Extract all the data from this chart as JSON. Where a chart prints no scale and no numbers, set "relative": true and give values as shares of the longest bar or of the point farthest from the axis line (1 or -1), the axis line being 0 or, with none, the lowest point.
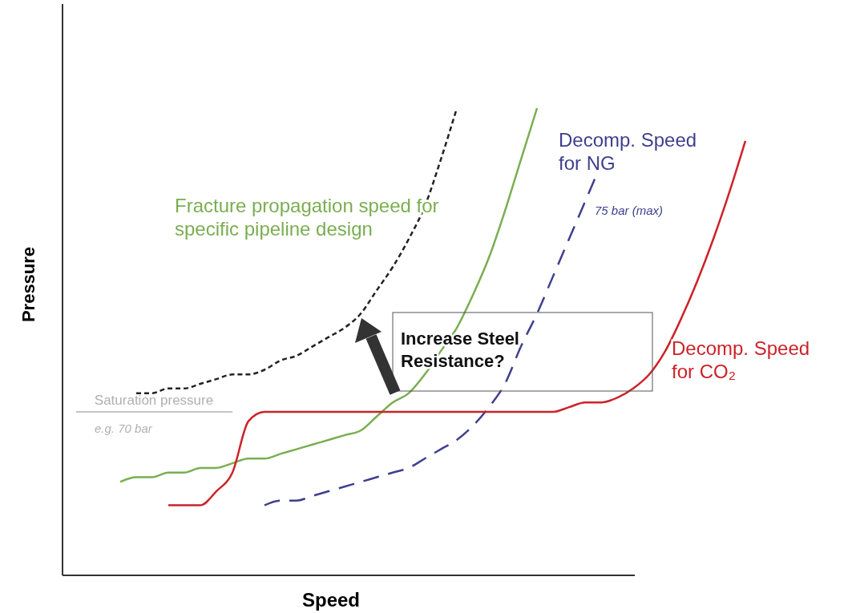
{
  "chart_data": {
    "type": "line",
    "relative": true,
    "xlabel": "Speed",
    "ylabel": "Pressure",
    "categories": [
      null,
      null,
      null,
      null,
      null,
      null,
      null,
      null,
      null,
      null,
      null,
      null,
      null,
      null,
      null,
      null,
      null,
      null,
      null,
      null,
      null,
      null,
      null,
      null,
      null,
      null,
      null,
      null,
      null,
      null,
      null,
      null,
      null,
      null,
      null,
      null,
      null,
      null,
      null,
      null
    ],
    "series": [
      {
        "name": "Fracture propagation speed for specific pipeline design",
        "color": "#7aae52",
        "line_style": "solid",
        "values": [
          0.2,
          0.21,
          0.21,
          0.22,
          0.22,
          0.23,
          0.23,
          0.24,
          0.25,
          0.25,
          0.26,
          0.27,
          0.28,
          0.29,
          0.3,
          0.31,
          0.34,
          0.37,
          0.39,
          0.43,
          0.48,
          0.53,
          0.6,
          0.68,
          0.78,
          0.89,
          1.0,
          null,
          null,
          null,
          null,
          null,
          null,
          null,
          null,
          null,
          null,
          null,
          null,
          null
        ]
      },
      {
        "color": "#222222",
        "line_style": "dashed",
        "values": [
          null,
          0.39,
          0.39,
          0.4,
          0.4,
          0.41,
          0.42,
          0.43,
          0.43,
          0.44,
          0.46,
          0.47,
          0.49,
          0.51,
          0.53,
          0.56,
          0.61,
          0.66,
          0.72,
          0.79,
          0.89,
          1.0,
          null,
          null,
          null,
          null,
          null,
          null,
          null,
          null,
          null,
          null,
          null,
          null,
          null,
          null,
          null,
          null,
          null,
          null
        ]
      },
      {
        "name": "Decomp. Speed for NG",
        "color": "#3f3f8f",
        "line_style": "dashed",
        "values": [
          null,
          null,
          null,
          null,
          null,
          null,
          null,
          null,
          null,
          0.15,
          0.16,
          0.16,
          0.17,
          0.18,
          0.19,
          0.2,
          0.21,
          0.22,
          0.23,
          0.25,
          0.27,
          0.29,
          0.32,
          0.36,
          0.41,
          0.49,
          0.56,
          0.64,
          0.72,
          0.8,
          0.88,
          null,
          null,
          null,
          null,
          null,
          null,
          null,
          null,
          null
        ]
      },
      {
        "name": "Decomp. Speed for CO₂",
        "color": "#cc2229",
        "line_style": "solid",
        "values": [
          null,
          null,
          null,
          0.15,
          0.15,
          0.15,
          0.18,
          0.22,
          0.33,
          0.35,
          0.35,
          0.35,
          0.35,
          0.35,
          0.35,
          0.35,
          0.35,
          0.35,
          0.35,
          0.35,
          0.35,
          0.35,
          0.35,
          0.35,
          0.35,
          0.35,
          0.35,
          0.35,
          0.36,
          0.37,
          0.37,
          0.38,
          0.4,
          0.43,
          0.48,
          0.55,
          0.63,
          0.72,
          0.82,
          0.93
        ]
      }
    ],
    "ref_lines": [
      {
        "axis": "y",
        "value": 0.35,
        "label": "Saturation pressure",
        "color": "#b0b0b0"
      }
    ],
    "annotations": [
      "75 bar (max)",
      "e.g. 70 bar",
      "Increase Steel Resistance?"
    ]
  }
}
